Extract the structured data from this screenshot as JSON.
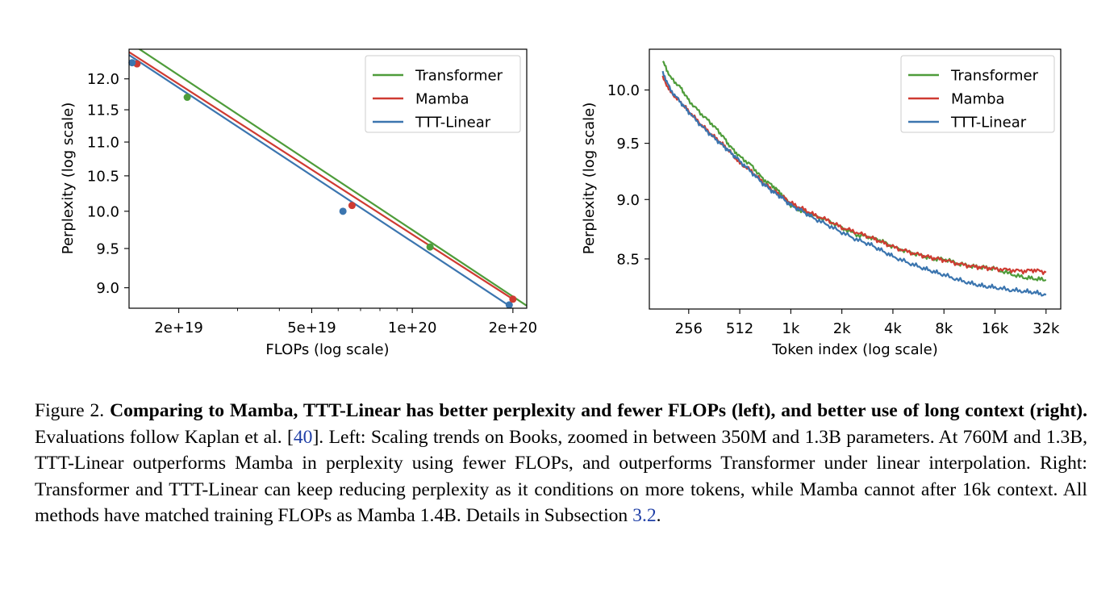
{
  "chart_data": [
    {
      "type": "line",
      "xlabel": "FLOPs (log scale)",
      "ylabel": "Perplexity (log scale)",
      "xscale": "log",
      "yscale": "log",
      "xlim": [
        1.42e+19,
        2.2e+20
      ],
      "ylim": [
        8.75,
        12.5
      ],
      "xticks": [
        {
          "value": 2e+19,
          "label": "2e+19"
        },
        {
          "value": 5e+19,
          "label": "5e+19"
        },
        {
          "value": 1e+20,
          "label": "1e+20"
        },
        {
          "value": 2e+20,
          "label": "2e+20"
        }
      ],
      "yticks": [
        {
          "value": 12.0,
          "label": "12.0"
        },
        {
          "value": 11.5,
          "label": "11.5"
        },
        {
          "value": 11.0,
          "label": "11.0"
        },
        {
          "value": 10.5,
          "label": "10.5"
        },
        {
          "value": 10.0,
          "label": "10.0"
        },
        {
          "value": 9.5,
          "label": "9.5"
        },
        {
          "value": 9.0,
          "label": "9.0"
        }
      ],
      "grid": false,
      "legend": "top-right",
      "series": [
        {
          "name": "Transformer",
          "color": "#4e9c3a",
          "line": [
            [
              1.42e+19,
              12.62
            ],
            [
              2.2e+20,
              8.78
            ]
          ],
          "points": [
            [
              2.12e+19,
              11.7
            ],
            [
              1.13e+20,
              9.52
            ]
          ]
        },
        {
          "name": "Mamba",
          "color": "#cf3b32",
          "line": [
            [
              1.42e+19,
              12.45
            ],
            [
              2e+20,
              8.86
            ]
          ],
          "points": [
            [
              1.5e+19,
              12.25
            ],
            [
              6.6e+19,
              10.08
            ]
          ]
        },
        {
          "name": "TTT-Linear",
          "color": "#3b75af",
          "line": [
            [
              1.42e+19,
              12.4
            ],
            [
              1.95e+20,
              8.78
            ]
          ],
          "points": [
            [
              1.45e+19,
              12.27
            ],
            [
              6.2e+19,
              10.0
            ],
            [
              1.95e+20,
              8.79
            ]
          ]
        }
      ],
      "extra_points": [
        {
          "series": "Mamba",
          "x": 2e+20,
          "y": 8.86
        }
      ]
    },
    {
      "type": "line",
      "xlabel": "Token index (log scale)",
      "ylabel": "Perplexity (log scale)",
      "xscale": "log2",
      "yscale": "log",
      "xlim": [
        150,
        40000
      ],
      "ylim": [
        8.1,
        10.4
      ],
      "xticks": [
        {
          "value": 256,
          "label": "256"
        },
        {
          "value": 512,
          "label": "512"
        },
        {
          "value": 1024,
          "label": "1k"
        },
        {
          "value": 2048,
          "label": "2k"
        },
        {
          "value": 4096,
          "label": "4k"
        },
        {
          "value": 8192,
          "label": "8k"
        },
        {
          "value": 16384,
          "label": "16k"
        },
        {
          "value": 32768,
          "label": "32k"
        }
      ],
      "yticks": [
        {
          "value": 10.0,
          "label": "10.0"
        },
        {
          "value": 9.5,
          "label": "9.5"
        },
        {
          "value": 9.0,
          "label": "9.0"
        },
        {
          "value": 8.5,
          "label": "8.5"
        }
      ],
      "grid": false,
      "legend": "top-right",
      "series": [
        {
          "name": "Transformer",
          "color": "#4e9c3a",
          "x": [
            180,
            200,
            230,
            256,
            300,
            350,
            400,
            450,
            512,
            600,
            700,
            800,
            900,
            1024,
            1200,
            1400,
            1700,
            2048,
            2500,
            3000,
            3500,
            4096,
            5000,
            6000,
            7000,
            8192,
            10000,
            12000,
            14000,
            16384,
            20000,
            24000,
            28000,
            32768
          ],
          "y": [
            10.28,
            10.12,
            10.02,
            9.9,
            9.78,
            9.68,
            9.58,
            9.47,
            9.38,
            9.3,
            9.18,
            9.12,
            9.05,
            8.95,
            8.9,
            8.86,
            8.82,
            8.76,
            8.7,
            8.68,
            8.65,
            8.6,
            8.56,
            8.53,
            8.5,
            8.5,
            8.46,
            8.44,
            8.43,
            8.42,
            8.38,
            8.35,
            8.34,
            8.33
          ]
        },
        {
          "name": "Mamba",
          "color": "#cf3b32",
          "x": [
            180,
            200,
            230,
            256,
            300,
            350,
            400,
            450,
            512,
            600,
            700,
            800,
            900,
            1024,
            1200,
            1400,
            1700,
            2048,
            2500,
            3000,
            3500,
            4096,
            5000,
            6000,
            7000,
            8192,
            10000,
            12000,
            14000,
            16384,
            20000,
            24000,
            28000,
            32768
          ],
          "y": [
            10.12,
            9.98,
            9.88,
            9.8,
            9.68,
            9.58,
            9.5,
            9.42,
            9.32,
            9.25,
            9.15,
            9.08,
            9.03,
            8.97,
            8.92,
            8.87,
            8.82,
            8.76,
            8.72,
            8.68,
            8.64,
            8.6,
            8.56,
            8.53,
            8.51,
            8.49,
            8.46,
            8.44,
            8.43,
            8.42,
            8.41,
            8.4,
            8.41,
            8.39
          ]
        },
        {
          "name": "TTT-Linear",
          "color": "#3b75af",
          "x": [
            180,
            200,
            230,
            256,
            300,
            350,
            400,
            450,
            512,
            600,
            700,
            800,
            900,
            1024,
            1200,
            1400,
            1700,
            2048,
            2500,
            3000,
            3500,
            4096,
            5000,
            6000,
            7000,
            8192,
            10000,
            12000,
            14000,
            16384,
            20000,
            24000,
            28000,
            32768
          ],
          "y": [
            10.17,
            10.0,
            9.88,
            9.79,
            9.67,
            9.57,
            9.49,
            9.42,
            9.34,
            9.24,
            9.14,
            9.07,
            9.02,
            8.95,
            8.9,
            8.84,
            8.78,
            8.72,
            8.66,
            8.62,
            8.57,
            8.52,
            8.47,
            8.43,
            8.4,
            8.37,
            8.33,
            8.3,
            8.28,
            8.27,
            8.25,
            8.24,
            8.23,
            8.21
          ]
        }
      ]
    }
  ],
  "caption": {
    "prefix": "Figure 2. ",
    "bold": "Comparing to Mamba, TTT-Linear has better perplexity and fewer FLOPs (left), and better use of long context (right).",
    "text1": " Evaluations follow Kaplan et al. [",
    "ref1": "40",
    "text2": "]. Left: Scaling trends on Books, zoomed in between 350M and 1.3B parameters. At 760M and 1.3B, TTT-Linear outperforms Mamba in perplexity using fewer FLOPs, and outperforms Transformer under linear interpolation. Right: Transformer and TTT-Linear can keep reducing perplexity as it conditions on more tokens, while Mamba cannot after 16k context. All methods have matched training FLOPs as Mamba 1.4B. Details in Subsection ",
    "ref2": "3.2",
    "text3": "."
  }
}
